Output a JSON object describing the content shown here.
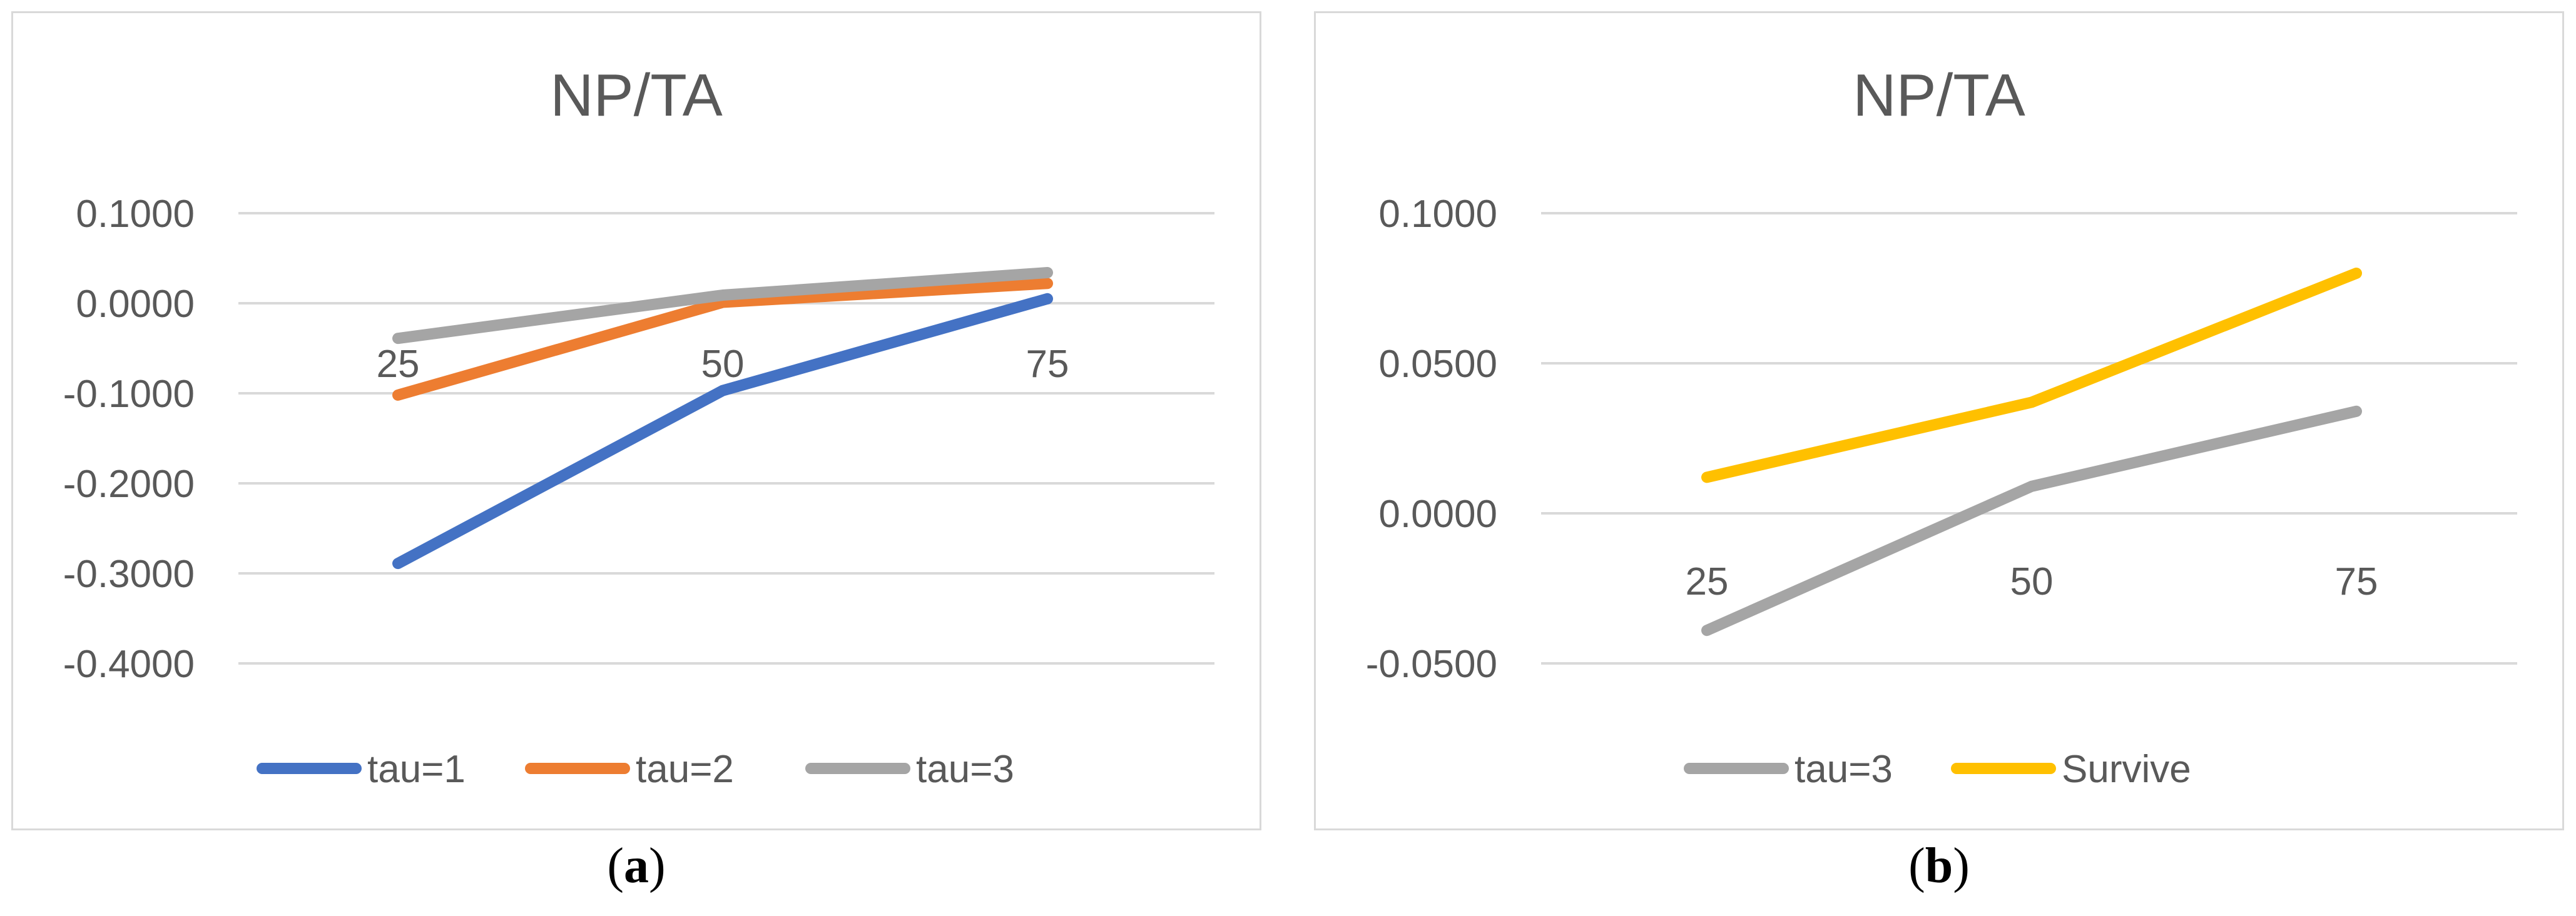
{
  "chart_data": [
    {
      "type": "line",
      "title": "NP/TA",
      "categories": [
        "25",
        "50",
        "75"
      ],
      "ylim": [
        -0.4,
        0.1
      ],
      "yticks": [
        0.1,
        0.0,
        -0.1,
        -0.2,
        -0.3,
        -0.4
      ],
      "ytick_labels": [
        "0.1000",
        "0.0000",
        "-0.1000",
        "-0.2000",
        "-0.3000",
        "-0.4000"
      ],
      "grid": true,
      "legend_position": "bottom",
      "series": [
        {
          "name": "tau=1",
          "color": "#4472c4",
          "values": [
            -0.289,
            -0.097,
            0.005
          ]
        },
        {
          "name": "tau=2",
          "color": "#ed7d31",
          "values": [
            -0.102,
            0.001,
            0.022
          ]
        },
        {
          "name": "tau=3",
          "color": "#a5a5a5",
          "values": [
            -0.039,
            0.009,
            0.034
          ]
        }
      ],
      "caption": {
        "open": "(",
        "letter": "a",
        "close": ")"
      }
    },
    {
      "type": "line",
      "title": "NP/TA",
      "categories": [
        "25",
        "50",
        "75"
      ],
      "ylim": [
        -0.05,
        0.1
      ],
      "yticks": [
        0.1,
        0.05,
        0.0,
        -0.05
      ],
      "ytick_labels": [
        "0.1000",
        "0.0500",
        "0.0000",
        "-0.0500"
      ],
      "grid": true,
      "legend_position": "bottom",
      "series": [
        {
          "name": "tau=3",
          "color": "#a5a5a5",
          "values": [
            -0.039,
            0.009,
            0.034
          ]
        },
        {
          "name": "Survive",
          "color": "#ffc000",
          "values": [
            0.012,
            0.037,
            0.08
          ]
        }
      ],
      "caption": {
        "open": "(",
        "letter": "b",
        "close": ")"
      }
    }
  ]
}
